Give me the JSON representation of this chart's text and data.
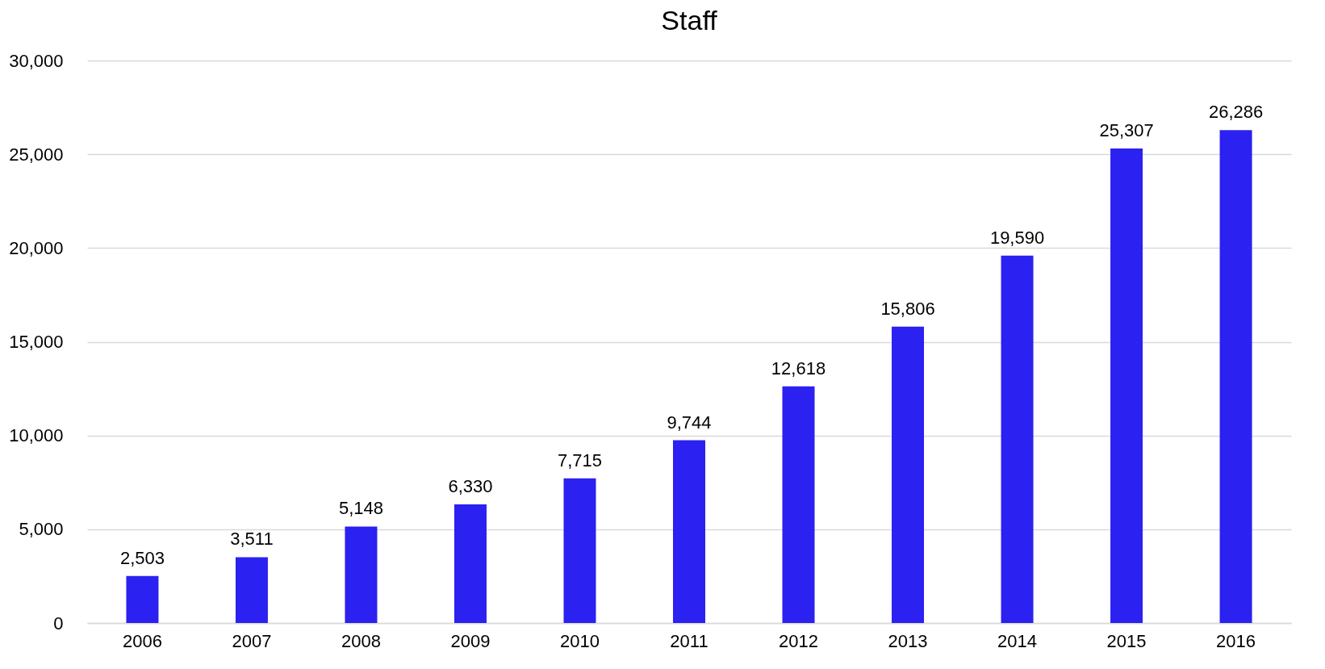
{
  "chart_data": {
    "type": "bar",
    "title": "Staff",
    "categories": [
      "2006",
      "2007",
      "2008",
      "2009",
      "2010",
      "2011",
      "2012",
      "2013",
      "2014",
      "2015",
      "2016"
    ],
    "values": [
      2503,
      3511,
      5148,
      6330,
      7715,
      9744,
      12618,
      15806,
      19590,
      25307,
      26286
    ],
    "color": "#2b21f0",
    "ylim": [
      0,
      30000
    ],
    "yticks": [
      {
        "value": 0,
        "label": "0"
      },
      {
        "value": 5000,
        "label": "5,000"
      },
      {
        "value": 10000,
        "label": "10,000"
      },
      {
        "value": 15000,
        "label": "15,000"
      },
      {
        "value": 20000,
        "label": "20,000"
      },
      {
        "value": 25000,
        "label": "25,000"
      },
      {
        "value": 30000,
        "label": "30,000"
      }
    ],
    "grid": "y",
    "value_labels": [
      "2,503",
      "3,511",
      "5,148",
      "6,330",
      "7,715",
      "9,744",
      "12,618",
      "15,806",
      "19,590",
      "25,307",
      "26,286"
    ]
  }
}
